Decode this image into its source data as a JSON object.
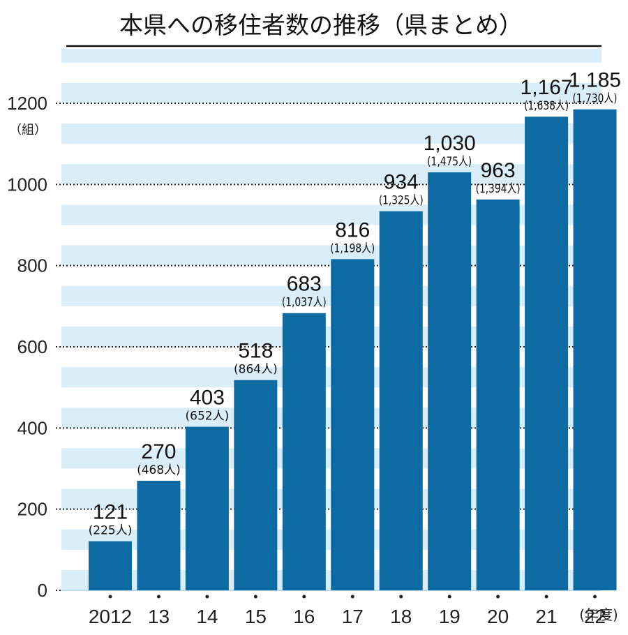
{
  "chart_data": {
    "type": "bar",
    "title": "本県への移住者数の推移（県まとめ）",
    "ylabel_unit": "（組）",
    "x_suffix": "(年度)",
    "categories": [
      "2012",
      "13",
      "14",
      "15",
      "16",
      "17",
      "18",
      "19",
      "20",
      "21",
      "22"
    ],
    "values": [
      121,
      270,
      403,
      518,
      683,
      816,
      934,
      1030,
      963,
      1167,
      1185
    ],
    "value_labels": [
      "121",
      "270",
      "403",
      "518",
      "683",
      "816",
      "934",
      "1,030",
      "963",
      "1,167",
      "1,185"
    ],
    "sub_labels": [
      "(225人)",
      "(468人)",
      "(652人)",
      "(864人)",
      "(1,037人)",
      "(1,198人)",
      "(1,325人)",
      "(1,475人)",
      "(1,394人)",
      "(1,638人)",
      "(1,730人)"
    ],
    "ylim": [
      0,
      1200
    ],
    "yticks": [
      0,
      200,
      400,
      600,
      800,
      1000,
      1200
    ],
    "grid": "dotted horizontal",
    "colors": {
      "bar": "#0d6aa3",
      "background_stripe_light": "#d9eef9",
      "background_stripe_white": "#ffffff",
      "text": "#111111"
    }
  }
}
